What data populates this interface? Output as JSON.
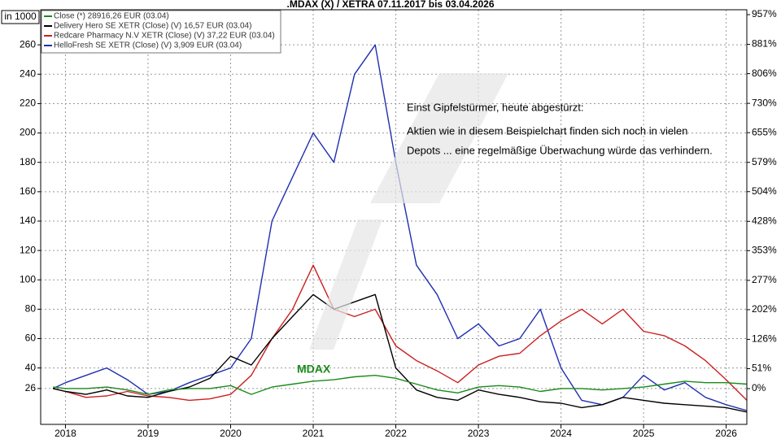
{
  "chart_data": {
    "type": "line",
    "title": ".MDAX (X) / XETRA 07.11.2017 bis 03.04.2026",
    "y_label": "in 1000",
    "x": [
      2017.85,
      2018.0,
      2018.25,
      2018.5,
      2018.75,
      2019.0,
      2019.25,
      2019.5,
      2019.75,
      2020.0,
      2020.25,
      2020.5,
      2020.75,
      2021.0,
      2021.25,
      2021.5,
      2021.75,
      2022.0,
      2022.25,
      2022.5,
      2022.75,
      2023.0,
      2023.25,
      2023.5,
      2023.75,
      2024.0,
      2024.25,
      2024.5,
      2024.75,
      2025.0,
      2025.25,
      2025.5,
      2025.75,
      2026.0,
      2026.25
    ],
    "xlim": [
      2017.7,
      2026.25
    ],
    "xticks": [
      2018,
      2019,
      2020,
      2021,
      2022,
      2023,
      2024,
      2025,
      2026
    ],
    "ylim": [
      1.6,
      283.9
    ],
    "yticks": [
      26,
      40,
      60,
      80,
      100,
      120,
      140,
      160,
      180,
      200,
      220,
      240,
      260
    ],
    "y2lim": [
      -91.5,
      969.5
    ],
    "y2ticks": [
      {
        "value": 0,
        "label": "0%"
      },
      {
        "value": 51,
        "label": "51%"
      },
      {
        "value": 126,
        "label": "126%"
      },
      {
        "value": 202,
        "label": "202%"
      },
      {
        "value": 277,
        "label": "277%"
      },
      {
        "value": 353,
        "label": "353%"
      },
      {
        "value": 428,
        "label": "428%"
      },
      {
        "value": 504,
        "label": "504%"
      },
      {
        "value": 579,
        "label": "579%"
      },
      {
        "value": 655,
        "label": "655%"
      },
      {
        "value": 730,
        "label": "730%"
      },
      {
        "value": 806,
        "label": "806%"
      },
      {
        "value": 881,
        "label": "881%"
      },
      {
        "value": 957,
        "label": "957%"
      }
    ],
    "grid": true,
    "legend": "upper left",
    "series": [
      {
        "name": "Close (*) 28916,26 EUR (03.04)",
        "color": "#1a8a1a",
        "values": [
          27,
          26,
          26,
          27,
          25,
          22,
          25,
          26,
          26,
          28,
          22,
          27,
          29,
          31,
          32,
          34,
          35,
          33,
          29,
          25,
          23,
          27,
          28,
          27,
          24,
          26,
          26,
          25,
          26,
          27,
          29,
          31,
          30,
          30,
          29
        ]
      },
      {
        "name": "Delivery Hero SE XETR (Close) (V) 16,57 EUR (03.04)",
        "color": "#000000",
        "values": [
          26,
          24,
          22,
          25,
          21,
          20,
          24,
          27,
          33,
          48,
          42,
          60,
          75,
          90,
          80,
          85,
          90,
          40,
          25,
          20,
          18,
          25,
          22,
          20,
          17,
          16,
          13,
          15,
          20,
          18,
          16,
          15,
          14,
          13,
          10
        ]
      },
      {
        "name": "Redcare Pharmacy N.V XETR (Close) (V) 37,22 EUR (03.04)",
        "color": "#cc1f1f",
        "values": [
          26,
          24,
          20,
          21,
          24,
          21,
          20,
          18,
          19,
          22,
          35,
          60,
          80,
          110,
          80,
          75,
          80,
          55,
          45,
          38,
          30,
          42,
          48,
          50,
          62,
          72,
          80,
          70,
          80,
          65,
          62,
          55,
          45,
          32,
          18
        ]
      },
      {
        "name": "HelloFresh SE XETR (Close) (V) 3,909 EUR (03.04)",
        "color": "#1f2fb0",
        "values": [
          26,
          30,
          35,
          40,
          32,
          22,
          24,
          30,
          35,
          40,
          60,
          140,
          170,
          200,
          180,
          240,
          260,
          180,
          110,
          90,
          60,
          70,
          55,
          60,
          80,
          40,
          18,
          15,
          20,
          35,
          25,
          30,
          20,
          15,
          11
        ]
      }
    ],
    "annotations": [
      "Einst Gipfelstürmer, heute abgestürzt:",
      "Aktien wie in diesem Beispielchart finden sich noch in vielen",
      "Depots ... eine regelmäßige Überwachung würde das verhindern.",
      "MDAX"
    ]
  }
}
